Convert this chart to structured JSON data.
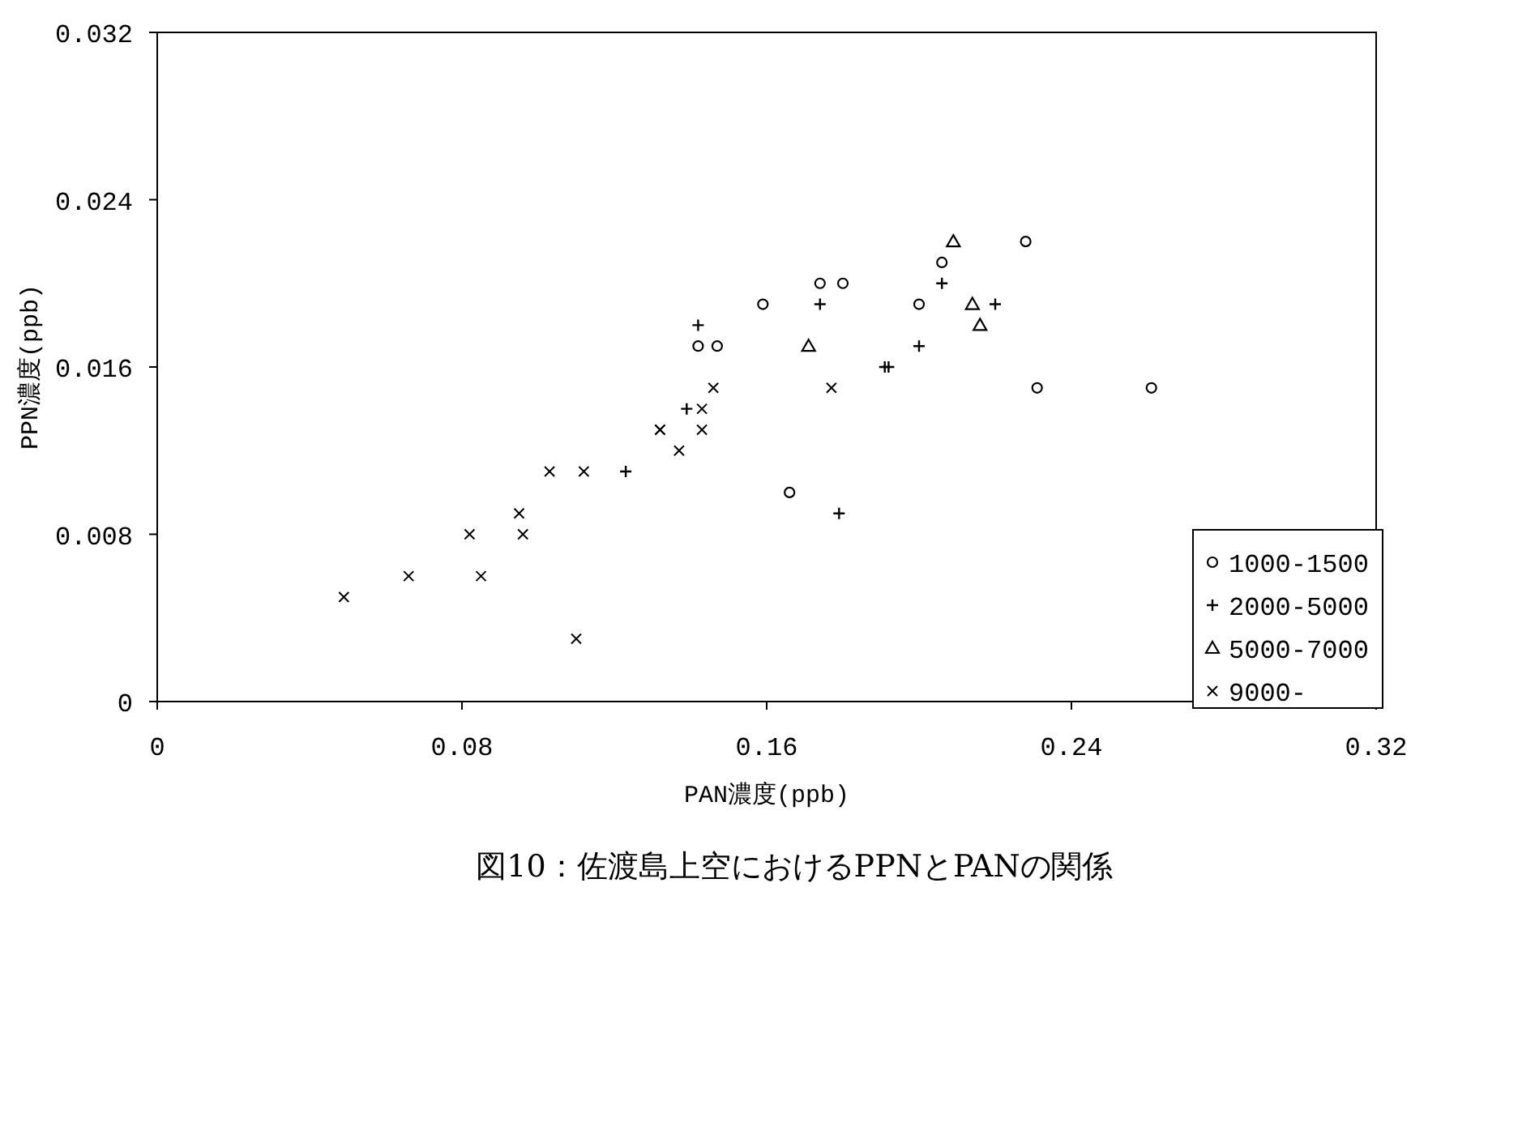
{
  "chart_data": {
    "type": "scatter",
    "title": "図10：佐渡島上空におけるPPNとPANの関係",
    "xlabel": "PAN濃度(ppb)",
    "ylabel": "PPN濃度(ppb)",
    "xlim": [
      0,
      0.32
    ],
    "xticks": [
      0,
      0.08,
      0.16,
      0.24,
      0.32
    ],
    "ylim": [
      0,
      0.032
    ],
    "yticks": [
      0,
      0.008,
      0.016,
      0.024,
      0.032
    ],
    "grid": false,
    "legend": "bottom right",
    "series": [
      {
        "name": "1000-1500",
        "color": "#000000",
        "marker": "circle",
        "x": [
          0.142,
          0.147,
          0.159,
          0.174,
          0.18,
          0.166,
          0.2,
          0.206,
          0.228,
          0.231,
          0.261
        ],
        "values": [
          0.017,
          0.017,
          0.019,
          0.02,
          0.02,
          0.01,
          0.019,
          0.021,
          0.022,
          0.015,
          0.015
        ]
      },
      {
        "name": "2000-5000",
        "color": "#000000",
        "marker": "plus",
        "x": [
          0.142,
          0.139,
          0.123,
          0.174,
          0.191,
          0.192,
          0.2,
          0.206,
          0.22,
          0.179
        ],
        "values": [
          0.018,
          0.014,
          0.011,
          0.019,
          0.016,
          0.016,
          0.017,
          0.02,
          0.019,
          0.009
        ]
      },
      {
        "name": "5000-7000",
        "color": "#000000",
        "marker": "triangle",
        "x": [
          0.209,
          0.171,
          0.214,
          0.216
        ],
        "values": [
          0.022,
          0.017,
          0.019,
          0.018
        ]
      },
      {
        "name": "9000-",
        "color": "#000000",
        "marker": "cross",
        "x": [
          0.049,
          0.066,
          0.082,
          0.085,
          0.095,
          0.096,
          0.103,
          0.112,
          0.11,
          0.132,
          0.137,
          0.146,
          0.143,
          0.132,
          0.143,
          0.177
        ],
        "values": [
          0.005,
          0.006,
          0.008,
          0.006,
          0.009,
          0.008,
          0.011,
          0.011,
          0.003,
          0.013,
          0.012,
          0.015,
          0.014,
          0.013,
          0.013,
          0.015
        ]
      }
    ]
  }
}
